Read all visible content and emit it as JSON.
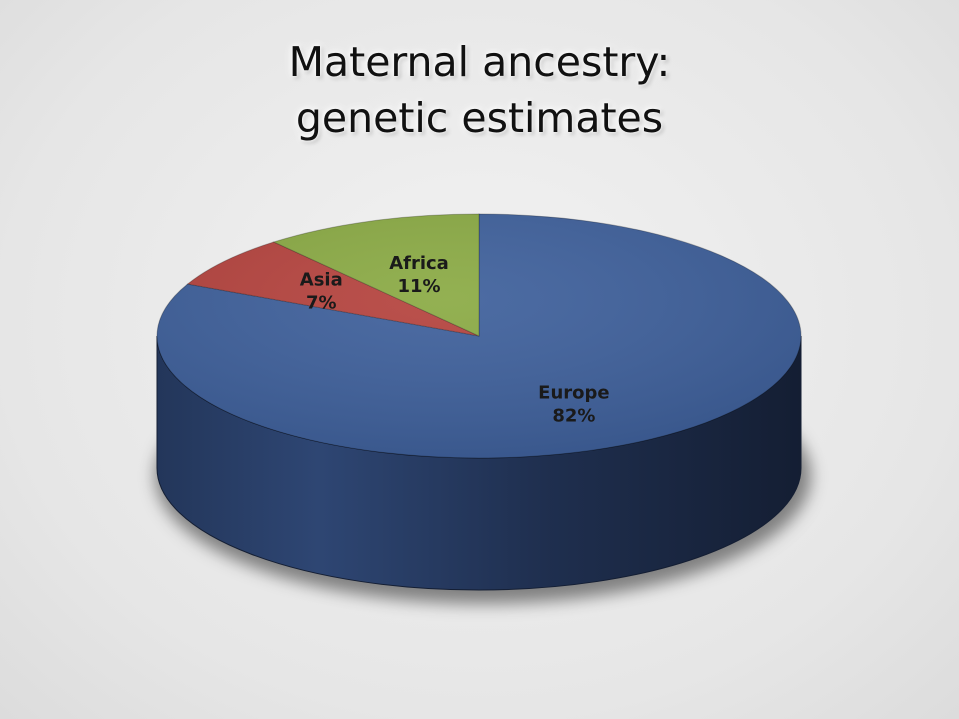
{
  "chart_data": {
    "type": "pie",
    "title_lines": [
      "Maternal ancestry:",
      "genetic estimates"
    ],
    "slices": [
      {
        "label": "Europe",
        "value": 82,
        "value_label": "82%",
        "color": "#3d5f9b"
      },
      {
        "label": "Asia",
        "value": 7,
        "value_label": "7%",
        "color": "#b5423d"
      },
      {
        "label": "Africa",
        "value": 11,
        "value_label": "11%",
        "color": "#8aaa43"
      }
    ],
    "style": "3d",
    "start_angle": "12 o'clock",
    "direction": "clockwise",
    "legend": "none"
  }
}
